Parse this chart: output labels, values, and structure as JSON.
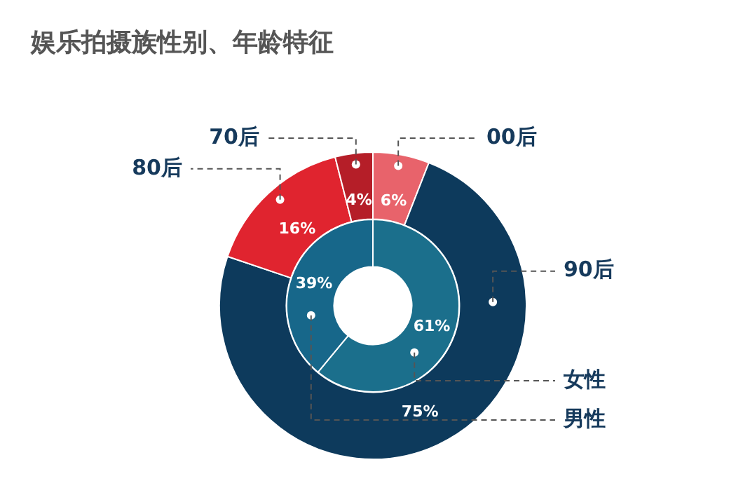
{
  "chart_data": [
    {
      "type": "donut",
      "title": "娱乐拍摄族性别、年龄特征",
      "categories": [
        "00后",
        "90后",
        "80后",
        "70后"
      ],
      "values": [
        6,
        75,
        16,
        4
      ],
      "colors": [
        "#e8636b",
        "#0d3a5c",
        "#e0242f",
        "#b51e28"
      ],
      "value_labels": [
        "6%",
        "75%",
        "16%",
        "4%"
      ]
    },
    {
      "type": "donut",
      "categories": [
        "女性",
        "男性"
      ],
      "values": [
        61,
        39
      ],
      "colors": [
        "#1b6f8c",
        "#17678a"
      ],
      "value_labels": [
        "61%",
        "39%"
      ]
    }
  ]
}
